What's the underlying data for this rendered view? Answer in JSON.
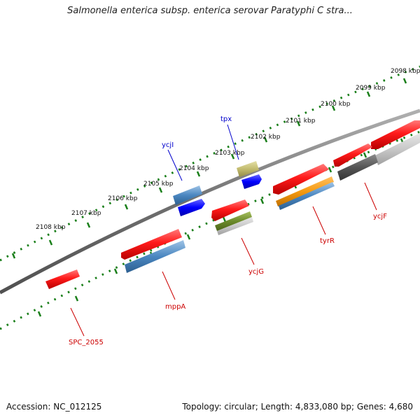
{
  "header": {
    "title": "Salmonella enterica subsp. enterica serovar Paratyphi C stra..."
  },
  "footer": {
    "accession": "Accession: NC_012125",
    "summary": "Topology: circular; Length: 4,833,080 bp; Genes: 4,680"
  },
  "ruler": {
    "ticks": [
      "2098 kbp",
      "2099 kbp",
      "2100 kbp",
      "2101 kbp",
      "2102 kbp",
      "2103 kbp",
      "2104 kbp",
      "2105 kbp",
      "2106 kbp",
      "2107 kbp",
      "2108 kbp"
    ]
  },
  "genes": {
    "tpx": "tpx",
    "ycjI": "ycjI",
    "ycjG": "ycjG",
    "tyrR": "tyrR",
    "ycjF": "ycjF",
    "mppA": "mppA",
    "spc2055": "SPC_2055"
  },
  "colors": {
    "forward_strand": "#ff0000",
    "reverse_strand": "#ff0000",
    "label_red": "#cc0000",
    "label_blue": "#0000cc",
    "ruler_green": "#1a7f1a",
    "backbone": "#777777"
  }
}
